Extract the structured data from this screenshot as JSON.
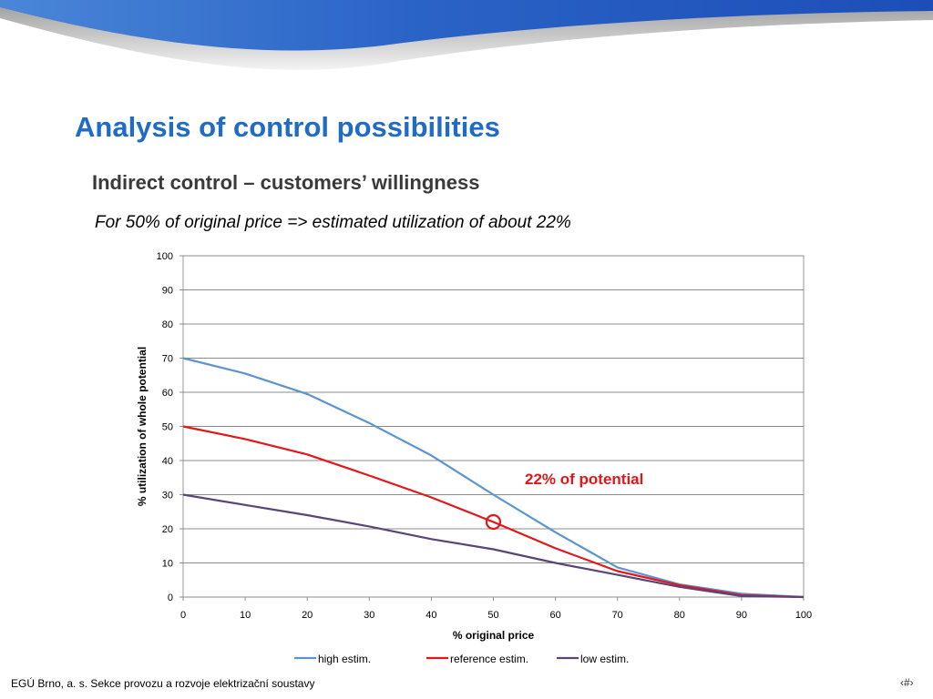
{
  "slide": {
    "title": "Analysis of control possibilities",
    "subtitle": "Indirect control – customers’ willingness",
    "note": "For 50% of original price => estimated utilization of about 22%",
    "footer": "EGÚ Brno, a. s.   Sekce provozu a rozvoje elektrizační soustavy",
    "page_number": "‹#›",
    "accent_color": "#1f6bc6"
  },
  "chart_data": {
    "type": "line",
    "xlabel": "% original price",
    "ylabel": "% utilization of whole potential",
    "xlim": [
      0,
      100
    ],
    "ylim": [
      0,
      100
    ],
    "x_ticks": [
      0,
      10,
      20,
      30,
      40,
      50,
      60,
      70,
      80,
      90,
      100
    ],
    "y_ticks": [
      0,
      10,
      20,
      30,
      40,
      50,
      60,
      70,
      80,
      90,
      100
    ],
    "grid": "horizontal",
    "legend_position": "bottom",
    "x": [
      0,
      10,
      20,
      30,
      40,
      50,
      60,
      70,
      80,
      90,
      100
    ],
    "series": [
      {
        "name": "high estim.",
        "color": "#5b93d3",
        "values": [
          70,
          65.5,
          59.5,
          51,
          41.5,
          30,
          19,
          8.7,
          3.7,
          1,
          0
        ]
      },
      {
        "name": "reference estim.",
        "color": "#e3171a",
        "values": [
          50,
          46.3,
          41.8,
          35.6,
          29.2,
          22,
          14.3,
          7.6,
          3.5,
          0.6,
          0
        ]
      },
      {
        "name": "low estim.",
        "color": "#5a4478",
        "values": [
          30,
          27,
          24,
          20.7,
          17,
          14,
          10,
          6.5,
          3,
          0.3,
          0
        ]
      }
    ],
    "annotation": {
      "text": "22% of potential",
      "x": 50,
      "y": 22,
      "color": "#e3171a"
    }
  }
}
